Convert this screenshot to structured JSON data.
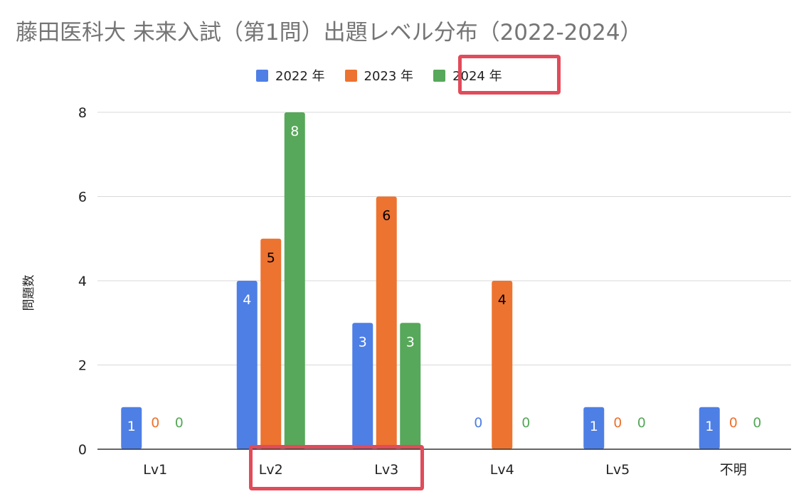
{
  "chart_data": {
    "type": "bar",
    "title": "藤田医科大 未来入試（第1問）出題レベル分布（2022-2024）",
    "xlabel": "",
    "ylabel": "問題数",
    "categories": [
      "Lv1",
      "Lv2",
      "Lv3",
      "Lv4",
      "Lv5",
      "不明"
    ],
    "series": [
      {
        "name": "2022 年",
        "color": "#4e7fe5",
        "label_color": "#4e7fe5",
        "label_inside_color": "#ffffff",
        "values": [
          1,
          4,
          3,
          0,
          1,
          1
        ]
      },
      {
        "name": "2023 年",
        "color": "#ed7330",
        "label_color": "#ed7330",
        "label_inside_color": "#000000",
        "values": [
          0,
          5,
          6,
          4,
          0,
          0
        ]
      },
      {
        "name": "2024 年",
        "color": "#57a85a",
        "label_color": "#57a85a",
        "label_inside_color": "#ffffff",
        "values": [
          0,
          8,
          3,
          0,
          0,
          0
        ]
      }
    ],
    "y_ticks": [
      0,
      2,
      4,
      6,
      8
    ],
    "ylim": [
      0,
      8
    ],
    "grid": true,
    "legend_position": "top",
    "highlights": [
      "legend: 2024 年",
      "categories: Lv2, Lv3"
    ],
    "highlight_color": "#e14b5a"
  }
}
